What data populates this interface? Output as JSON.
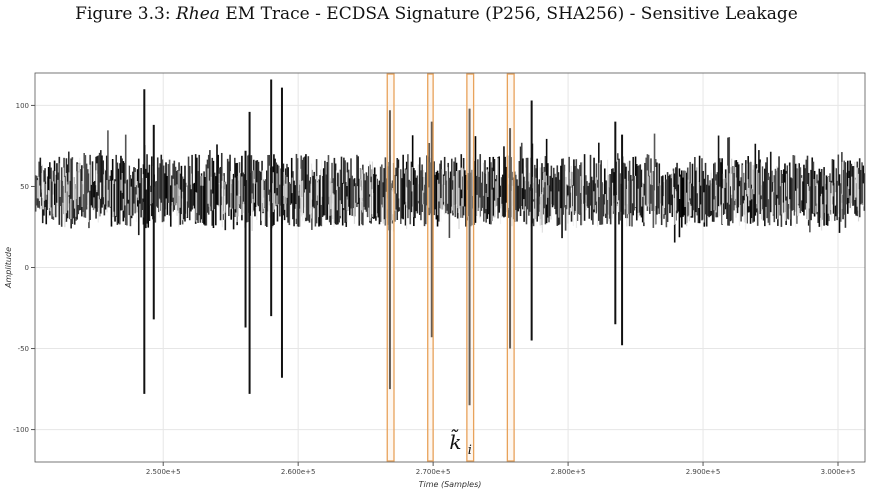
{
  "figure": {
    "label": "Figure 3.3:",
    "title_italic": "Rhea",
    "title_rest": "EM Trace - ECDSA Signature (P256, SHA256) - Sensitive Leakage"
  },
  "chart_data": {
    "type": "line",
    "xlabel": "Time (Samples)",
    "ylabel": "Amplitude",
    "xlim": [
      240500,
      302000
    ],
    "ylim": [
      -120,
      120
    ],
    "xticks": [
      250000,
      260000,
      270000,
      280000,
      290000,
      300000
    ],
    "xtick_labels": [
      "2.500e+5",
      "2.600e+5",
      "2.700e+5",
      "2.800e+5",
      "2.900e+5",
      "3.000e+5"
    ],
    "yticks": [
      100,
      50,
      0,
      -50,
      -100
    ],
    "ytick_labels": [
      "100",
      "50",
      "0",
      "-50",
      "-100"
    ],
    "grid": true,
    "trace_color": "#111111",
    "trace_band": {
      "mean": 45,
      "typical_low": 25,
      "typical_high": 70,
      "extreme_low": 15,
      "extreme_high": 85
    },
    "spikes": [
      {
        "x": 248600,
        "min": -78,
        "max": 110
      },
      {
        "x": 249300,
        "min": -32,
        "max": 88
      },
      {
        "x": 256100,
        "min": -37,
        "max": 72
      },
      {
        "x": 256400,
        "min": -78,
        "max": 96
      },
      {
        "x": 258000,
        "min": -30,
        "max": 116
      },
      {
        "x": 258800,
        "min": -68,
        "max": 111
      },
      {
        "x": 266800,
        "min": -75,
        "max": 97
      },
      {
        "x": 269900,
        "min": -43,
        "max": 90
      },
      {
        "x": 272700,
        "min": -85,
        "max": 98
      },
      {
        "x": 275700,
        "min": -50,
        "max": 86
      },
      {
        "x": 277300,
        "min": -45,
        "max": 103
      },
      {
        "x": 283500,
        "min": -35,
        "max": 90
      },
      {
        "x": 284000,
        "min": -48,
        "max": 82
      }
    ],
    "highlights": {
      "color": "#e8a25a",
      "fill": "#fbe8d4",
      "ranges": [
        [
          266600,
          267100
        ],
        [
          269600,
          270000
        ],
        [
          272500,
          273000
        ],
        [
          275500,
          276000
        ]
      ]
    },
    "annotation": {
      "text": "k̃",
      "subscript": "i",
      "x": 271200,
      "y": -107
    }
  }
}
